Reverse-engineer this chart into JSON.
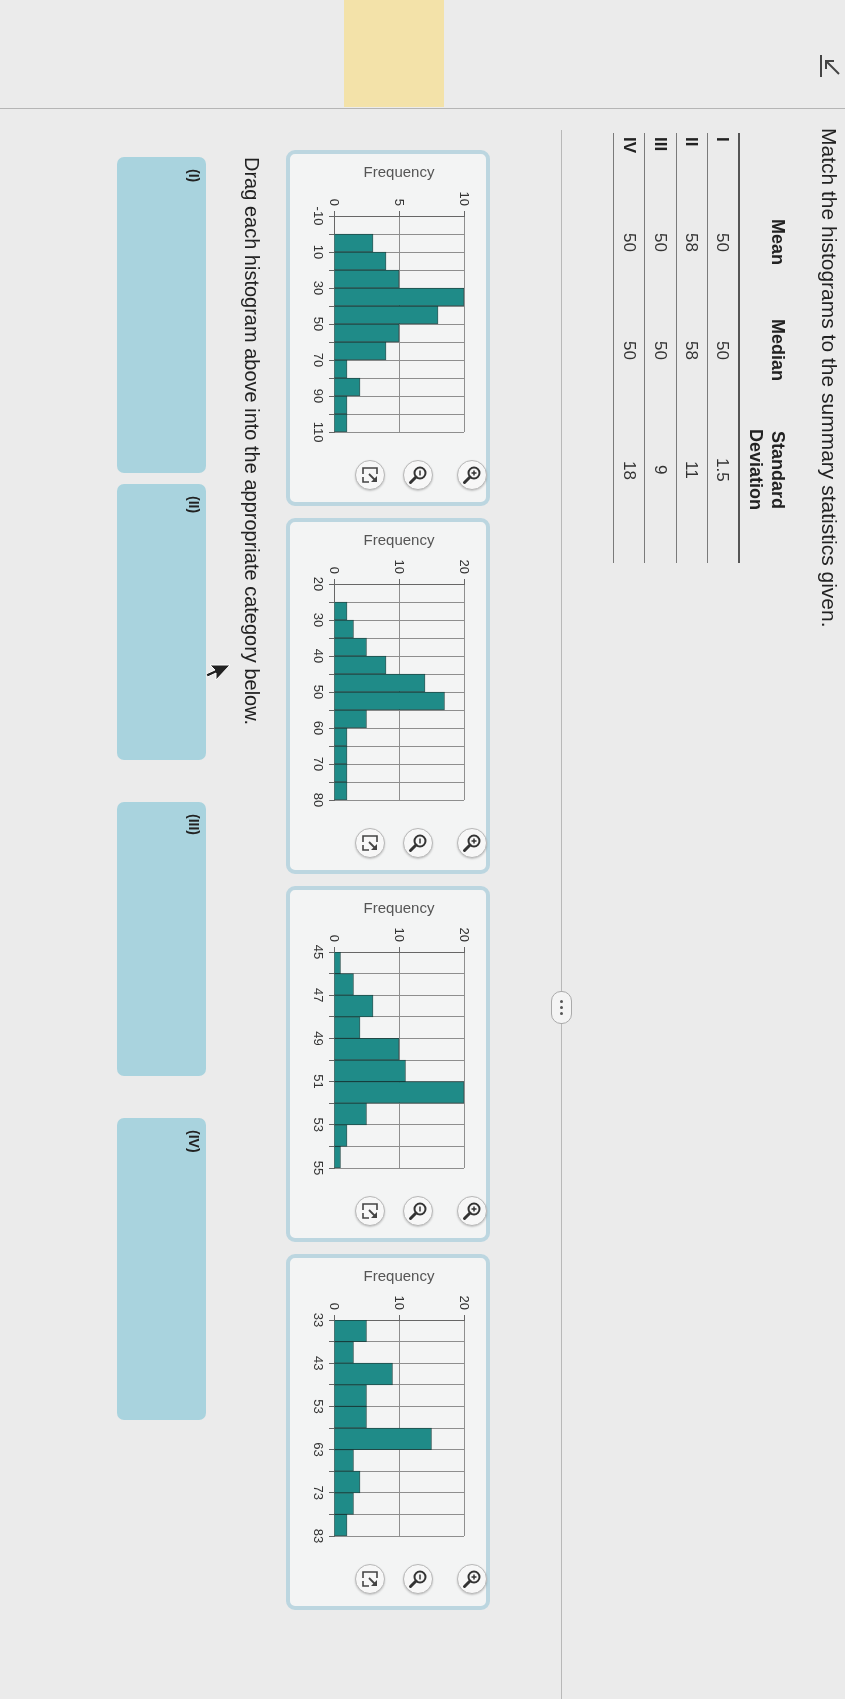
{
  "chart_data": [
    {
      "type": "other",
      "title": "Match the histograms to the summary statistics given.",
      "categories": [
        "I",
        "II",
        "III",
        "IV"
      ],
      "series": [
        {
          "name": "Mean",
          "values": [
            50,
            58,
            50,
            50
          ]
        },
        {
          "name": "Median",
          "values": [
            50,
            58,
            50,
            50
          ]
        },
        {
          "name": "Standard Deviation",
          "values": [
            1.5,
            11,
            9,
            18
          ]
        }
      ],
      "data_labels": true
    },
    {
      "type": "histogram",
      "orientation": "horizontal",
      "xlabel": "Frequency",
      "bins": [
        -10,
        0,
        10,
        20,
        30,
        40,
        50,
        60,
        70,
        80,
        90,
        100,
        110
      ],
      "values": [
        0,
        3,
        4,
        5,
        10,
        8,
        5,
        4,
        1,
        2,
        1,
        1
      ],
      "color": "#1f8b88",
      "ylim": [
        110,
        -10
      ],
      "yticks": [
        -10,
        {
          "value": 0,
          "label": null
        },
        10,
        {
          "value": 20,
          "label": null
        },
        30,
        {
          "value": 40,
          "label": null
        },
        50,
        {
          "value": 60,
          "label": null
        },
        70,
        {
          "value": 80,
          "label": null
        },
        90,
        {
          "value": 100,
          "label": null
        },
        110
      ],
      "xlim": [
        0,
        10
      ],
      "xticks": [
        0,
        5,
        10
      ],
      "grid": true
    },
    {
      "type": "histogram",
      "orientation": "horizontal",
      "xlabel": "Frequency",
      "bins": [
        20,
        25,
        30,
        35,
        40,
        45,
        50,
        55,
        60,
        65,
        70,
        75,
        80
      ],
      "values": [
        0,
        2,
        3,
        5,
        8,
        14,
        17,
        5,
        2,
        2,
        2,
        2
      ],
      "color": "#1f8b88",
      "ylim": [
        80,
        20
      ],
      "yticks": [
        20,
        {
          "value": 25,
          "label": null
        },
        30,
        {
          "value": 35,
          "label": null
        },
        40,
        {
          "value": 45,
          "label": null
        },
        50,
        {
          "value": 55,
          "label": null
        },
        60,
        {
          "value": 65,
          "label": null
        },
        70,
        {
          "value": 75,
          "label": null
        },
        80
      ],
      "xlim": [
        0,
        20
      ],
      "xticks": [
        0,
        10,
        20
      ],
      "grid": true
    },
    {
      "type": "histogram",
      "orientation": "horizontal",
      "xlabel": "Frequency",
      "bins": [
        45,
        46,
        47,
        48,
        49,
        50,
        51,
        52,
        53,
        54,
        55
      ],
      "values": [
        1,
        3,
        6,
        4,
        10,
        11,
        20,
        5,
        2,
        1
      ],
      "color": "#1f8b88",
      "ylim": [
        55,
        45
      ],
      "yticks": [
        45,
        {
          "value": 46,
          "label": null
        },
        47,
        {
          "value": 48,
          "label": null
        },
        49,
        {
          "value": 50,
          "label": null
        },
        51,
        {
          "value": 52,
          "label": null
        },
        53,
        {
          "value": 54,
          "label": null
        },
        55
      ],
      "xlim": [
        0,
        20
      ],
      "xticks": [
        0,
        10,
        20
      ],
      "grid": true
    },
    {
      "type": "histogram",
      "orientation": "horizontal",
      "xlabel": "Frequency",
      "bins": [
        33,
        38,
        43,
        48,
        53,
        58,
        63,
        68,
        73,
        78,
        83
      ],
      "values": [
        5,
        3,
        9,
        5,
        5,
        15,
        3,
        4,
        3,
        2
      ],
      "color": "#1f8b88",
      "ylim": [
        83,
        33
      ],
      "yticks": [
        33,
        {
          "value": 38,
          "label": null
        },
        43,
        {
          "value": 48,
          "label": null
        },
        53,
        {
          "value": 58,
          "label": null
        },
        63,
        {
          "value": 68,
          "label": null
        },
        73,
        {
          "value": 78,
          "label": null
        },
        83
      ],
      "xlim": [
        0,
        20
      ],
      "xticks": [
        0,
        10,
        20
      ],
      "grid": true
    },
    {
      "type": "other",
      "title": "Drag each histogram above into the appropriate category below.",
      "categories": [
        "(I)",
        "(II)",
        "(III)",
        "(IV)"
      ]
    }
  ]
}
